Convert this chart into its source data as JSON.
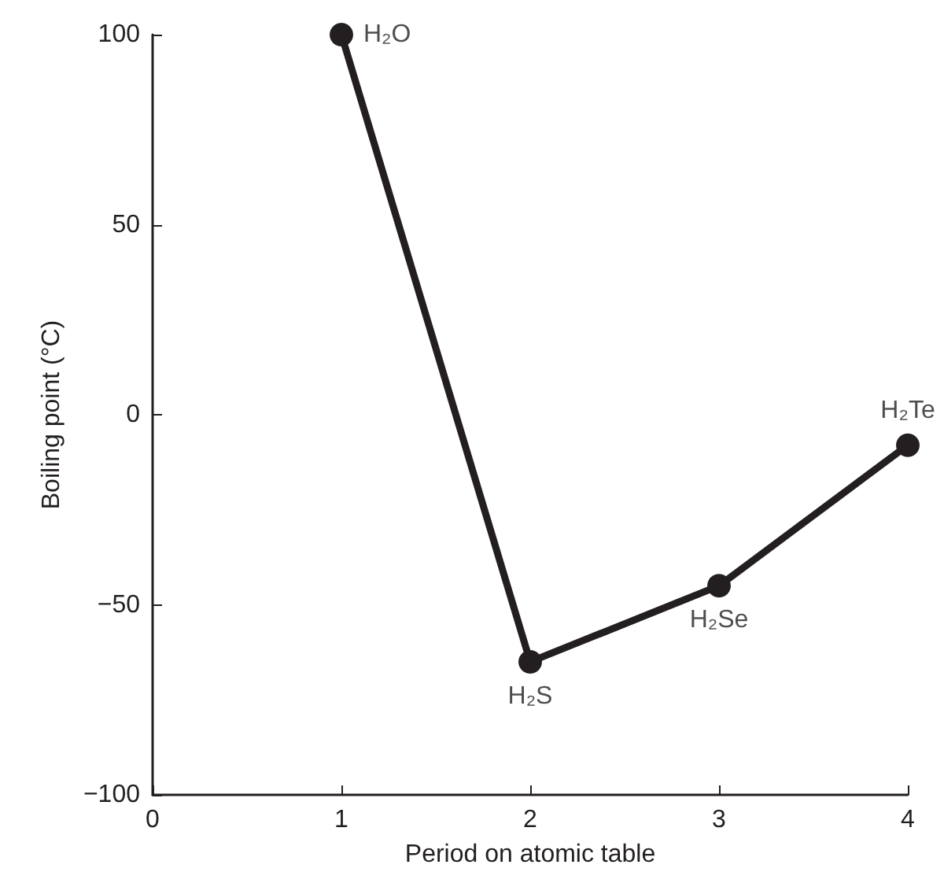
{
  "chart_data": {
    "type": "line",
    "xlabel": "Period on atomic table",
    "ylabel": "Boiling point (°C)",
    "x": [
      1,
      2,
      3,
      4
    ],
    "series": [
      {
        "color": "#231f20",
        "values": [
          100,
          -65,
          -45,
          -8
        ]
      }
    ],
    "xlim": [
      0,
      4
    ],
    "xticks": [
      0,
      1,
      2,
      3,
      4
    ],
    "ylim": [
      -100,
      100
    ],
    "yticks": [
      {
        "value": -100,
        "label": "−100"
      },
      {
        "value": -50,
        "label": "−50"
      },
      0,
      50,
      100
    ],
    "annotations": [
      {
        "text": "H₂O",
        "x": 1,
        "y": 100
      },
      {
        "text": "H₂S",
        "x": 2,
        "y": -65
      },
      {
        "text": "H₂Se",
        "x": 3,
        "y": -45
      },
      {
        "text": "H₂Te",
        "x": 4,
        "y": -8
      }
    ],
    "marker": "circle",
    "line_style": "solid",
    "grid": false
  }
}
